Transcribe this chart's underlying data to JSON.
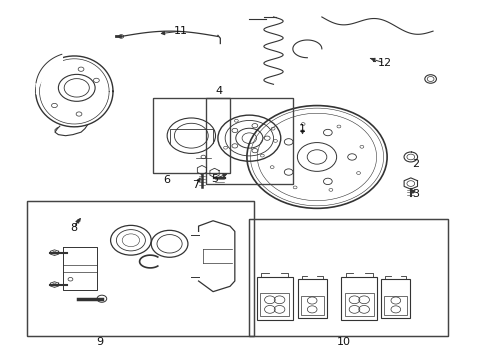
{
  "bg_color": "#ffffff",
  "fig_width": 4.89,
  "fig_height": 3.6,
  "dpi": 100,
  "line_color": "#333333",
  "box_color": "#444444",
  "label_fontsize": 8,
  "boxes": {
    "b6": [
      0.31,
      0.52,
      0.47,
      0.73
    ],
    "b4": [
      0.42,
      0.49,
      0.6,
      0.73
    ],
    "b9": [
      0.05,
      0.06,
      0.52,
      0.44
    ],
    "b10": [
      0.51,
      0.06,
      0.92,
      0.39
    ]
  },
  "labels": {
    "1": [
      0.62,
      0.645,
      0.62,
      0.62,
      true
    ],
    "2": [
      0.855,
      0.545,
      0.855,
      0.545,
      false
    ],
    "3": [
      0.855,
      0.46,
      0.84,
      0.48,
      true
    ],
    "4": [
      0.448,
      0.75,
      0.448,
      0.75,
      false
    ],
    "5": [
      0.438,
      0.503,
      0.47,
      0.52,
      true
    ],
    "6": [
      0.34,
      0.5,
      0.34,
      0.5,
      false
    ],
    "7": [
      0.4,
      0.485,
      0.412,
      0.515,
      true
    ],
    "8": [
      0.147,
      0.365,
      0.162,
      0.398,
      true
    ],
    "9": [
      0.2,
      0.042,
      0.2,
      0.042,
      false
    ],
    "10": [
      0.705,
      0.042,
      0.705,
      0.042,
      false
    ],
    "11": [
      0.368,
      0.92,
      0.32,
      0.912,
      true
    ],
    "12": [
      0.79,
      0.83,
      0.755,
      0.845,
      true
    ]
  }
}
